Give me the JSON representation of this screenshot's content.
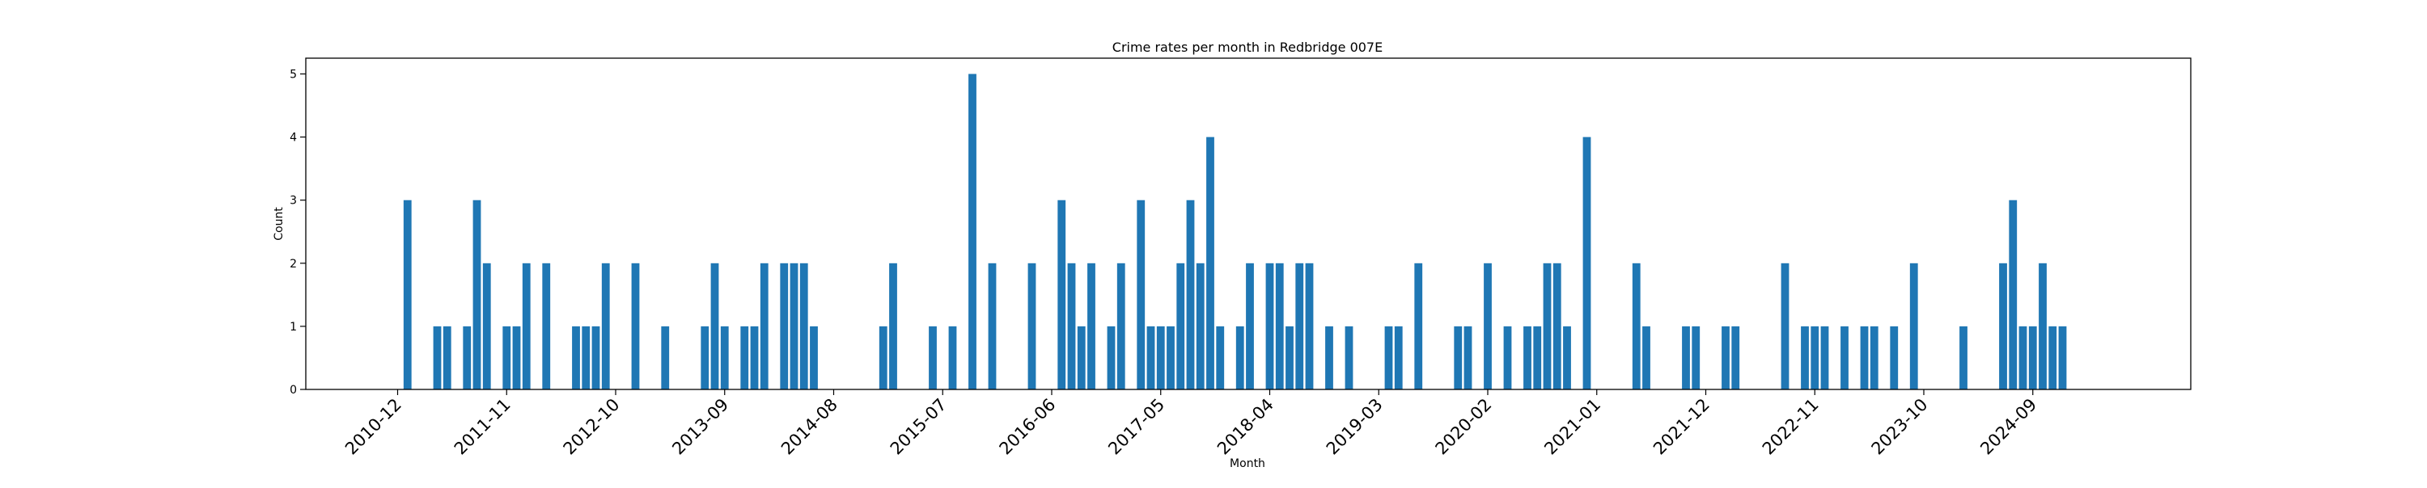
{
  "chart_data": {
    "type": "bar",
    "title": "Crime rates per month in Redbridge 007E",
    "xlabel": "Month",
    "ylabel": "Count",
    "ylim": [
      0,
      5.25
    ],
    "yticks": [
      0,
      1,
      2,
      3,
      4,
      5
    ],
    "xticks": [
      "2010-12",
      "2011-11",
      "2012-10",
      "2013-09",
      "2014-08",
      "2015-07",
      "2016-06",
      "2017-05",
      "2018-04",
      "2019-03",
      "2020-02",
      "2021-01",
      "2021-12",
      "2022-11",
      "2023-10",
      "2024-09"
    ],
    "bar_color": "#1f77b4",
    "grid": false,
    "series": [
      {
        "x": [
          "2011-01",
          "2011-04",
          "2011-05",
          "2011-07",
          "2011-08",
          "2011-09",
          "2011-11",
          "2011-12",
          "2012-01",
          "2012-03",
          "2012-06",
          "2012-07",
          "2012-08",
          "2012-09",
          "2012-12",
          "2013-03",
          "2013-07",
          "2013-08",
          "2013-09",
          "2013-11",
          "2013-12",
          "2014-01",
          "2014-03",
          "2014-04",
          "2014-05",
          "2014-06",
          "2015-01",
          "2015-02",
          "2015-06",
          "2015-08",
          "2015-10",
          "2015-12",
          "2016-04",
          "2016-07",
          "2016-08",
          "2016-09",
          "2016-10",
          "2016-12",
          "2017-01",
          "2017-03",
          "2017-04",
          "2017-05",
          "2017-06",
          "2017-07",
          "2017-08",
          "2017-09",
          "2017-10",
          "2017-11",
          "2018-01",
          "2018-02",
          "2018-04",
          "2018-05",
          "2018-06",
          "2018-07",
          "2018-08",
          "2018-10",
          "2018-12",
          "2019-04",
          "2019-05",
          "2019-07",
          "2019-11",
          "2019-12",
          "2020-02",
          "2020-04",
          "2020-06",
          "2020-07",
          "2020-08",
          "2020-09",
          "2020-10",
          "2020-12",
          "2021-05",
          "2021-06",
          "2021-10",
          "2021-11",
          "2022-02",
          "2022-03",
          "2022-08",
          "2022-10",
          "2022-11",
          "2022-12",
          "2023-02",
          "2023-04",
          "2023-05",
          "2023-07",
          "2023-09",
          "2024-02",
          "2024-06",
          "2024-07",
          "2024-08",
          "2024-09",
          "2024-10",
          "2024-11",
          "2024-12"
        ],
        "values": [
          3,
          1,
          1,
          1,
          3,
          2,
          1,
          1,
          2,
          2,
          1,
          1,
          1,
          2,
          2,
          1,
          1,
          2,
          1,
          1,
          1,
          2,
          2,
          2,
          2,
          1,
          1,
          2,
          1,
          1,
          5,
          2,
          2,
          3,
          2,
          1,
          2,
          1,
          2,
          3,
          1,
          1,
          1,
          2,
          3,
          2,
          4,
          1,
          1,
          2,
          2,
          2,
          1,
          2,
          2,
          1,
          1,
          1,
          1,
          2,
          1,
          1,
          2,
          1,
          1,
          1,
          2,
          2,
          1,
          4,
          2,
          1,
          1,
          1,
          1,
          1,
          2,
          1,
          1,
          1,
          1,
          1,
          1,
          1,
          2,
          1,
          2,
          3,
          1,
          1,
          2,
          1,
          1
        ]
      }
    ]
  }
}
